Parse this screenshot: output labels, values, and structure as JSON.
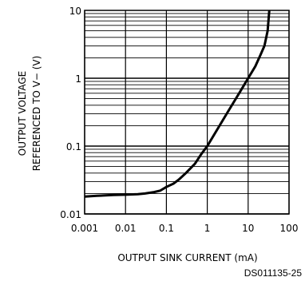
{
  "chart_data": {
    "type": "line",
    "xscale": "log",
    "yscale": "log",
    "xlim": [
      0.001,
      100
    ],
    "ylim": [
      0.01,
      10
    ],
    "x_ticks": [
      "0.001",
      "0.01",
      "0.1",
      "1",
      "10",
      "100"
    ],
    "y_ticks": [
      "0.01",
      "0.1",
      "1",
      "10"
    ],
    "xlabel": "OUTPUT SINK CURRENT (mA)",
    "ylabel_line1": "OUTPUT VOLTAGE",
    "ylabel_line2": "REFERENCED TO V− (V)",
    "figure_id": "DS011135-25",
    "grid": true,
    "series": [
      {
        "x": [
          0.001,
          0.002,
          0.005,
          0.01,
          0.02,
          0.03,
          0.05,
          0.07,
          0.1,
          0.15,
          0.2,
          0.3,
          0.5,
          0.7,
          1,
          2,
          3,
          5,
          7,
          10,
          15,
          20,
          25,
          30,
          33
        ],
        "y": [
          0.018,
          0.0185,
          0.019,
          0.0192,
          0.0195,
          0.02,
          0.021,
          0.022,
          0.025,
          0.028,
          0.032,
          0.04,
          0.055,
          0.075,
          0.1,
          0.2,
          0.3,
          0.5,
          0.7,
          1.0,
          1.5,
          2.2,
          3.0,
          5.0,
          10
        ]
      }
    ]
  }
}
